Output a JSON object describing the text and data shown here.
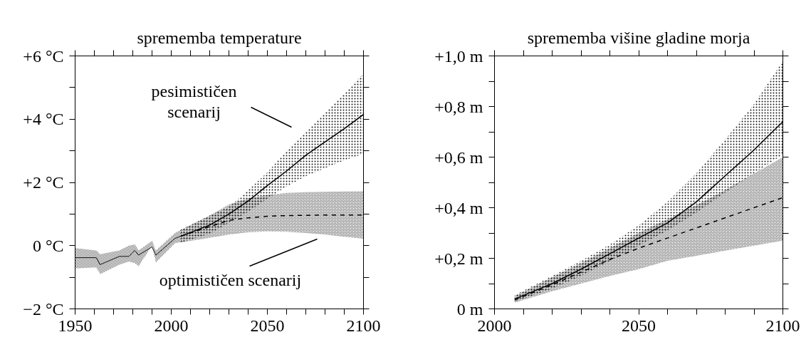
{
  "chart_data": [
    {
      "type": "line",
      "title": "sprememba temperature",
      "xlim": [
        1950,
        2100
      ],
      "ylim": [
        -2,
        6
      ],
      "xticks": [
        1950,
        {
          "value": 1960,
          "label": null
        },
        {
          "value": 1970,
          "label": null
        },
        {
          "value": 1980,
          "label": null
        },
        {
          "value": 1990,
          "label": null
        },
        2000,
        {
          "value": 2010,
          "label": null
        },
        {
          "value": 2020,
          "label": null
        },
        {
          "value": 2030,
          "label": null
        },
        {
          "value": 2040,
          "label": null
        },
        2050,
        {
          "value": 2060,
          "label": null
        },
        {
          "value": 2070,
          "label": null
        },
        {
          "value": 2080,
          "label": null
        },
        {
          "value": 2090,
          "label": null
        },
        2100
      ],
      "yticks": [
        {
          "value": -2,
          "label": "−2 °C"
        },
        {
          "value": -1,
          "label": null
        },
        {
          "value": 0,
          "label": "0 °C"
        },
        {
          "value": 1,
          "label": null
        },
        {
          "value": 2,
          "label": "+2 °C"
        },
        {
          "value": 3,
          "label": null
        },
        {
          "value": 4,
          "label": "+4 °C"
        },
        {
          "value": 5,
          "label": null
        },
        {
          "value": 6,
          "label": "+6 °C"
        }
      ],
      "grid": false,
      "marker": "none",
      "series": [
        {
          "color": "#000000",
          "line_style": "solid",
          "x": [
            1950,
            1961,
            1963,
            1973,
            1978,
            1981,
            1983,
            1990,
            1992,
            2002,
            2005
          ],
          "values": [
            -0.38,
            -0.38,
            -0.6,
            -0.34,
            -0.34,
            -0.15,
            -0.3,
            -0.04,
            -0.3,
            0.23,
            0.3
          ],
          "lower": [
            -0.72,
            -0.69,
            -0.9,
            -0.6,
            -0.5,
            -0.55,
            -0.65,
            0.0,
            -0.53,
            0.08,
            0.11
          ],
          "upper": [
            -0.08,
            -0.15,
            -0.27,
            -0.15,
            0.0,
            0.04,
            -0.15,
            0.15,
            -0.15,
            0.4,
            0.5
          ]
        },
        {
          "color": "#000000",
          "line_style": "solid",
          "x": [
            2005,
            2020,
            2030,
            2040,
            2050,
            2060,
            2070,
            2080,
            2090,
            2100
          ],
          "values": [
            0.3,
            0.65,
            1.0,
            1.41,
            1.9,
            2.36,
            2.86,
            3.28,
            3.7,
            4.15
          ],
          "lower": [
            0.1,
            0.38,
            0.72,
            1.07,
            1.49,
            1.87,
            2.2,
            2.45,
            2.7,
            2.9
          ],
          "upper": [
            0.5,
            0.95,
            1.22,
            1.75,
            2.32,
            3.0,
            3.6,
            4.2,
            4.8,
            5.45
          ]
        },
        {
          "color": "#000000",
          "line_style": "dashed",
          "x": [
            2005,
            2020,
            2030,
            2040,
            2050,
            2060,
            2070,
            2080,
            2090,
            2100
          ],
          "values": [
            0.3,
            0.6,
            0.8,
            0.88,
            0.93,
            0.95,
            0.96,
            0.97,
            0.97,
            0.97
          ],
          "lower": [
            0.1,
            0.25,
            0.35,
            0.42,
            0.45,
            0.44,
            0.4,
            0.35,
            0.28,
            0.22
          ],
          "upper": [
            0.5,
            0.95,
            1.3,
            1.5,
            1.6,
            1.67,
            1.69,
            1.7,
            1.71,
            1.72
          ]
        }
      ],
      "annotations": [
        "pesimističen\nscenarij",
        "optimističen scenarij"
      ]
    },
    {
      "type": "line",
      "title": "sprememba višine gladine morja",
      "xlim": [
        2000,
        2100
      ],
      "ylim": [
        0,
        1
      ],
      "xticks": [
        2000,
        {
          "value": 2010,
          "label": null
        },
        {
          "value": 2020,
          "label": null
        },
        {
          "value": 2030,
          "label": null
        },
        {
          "value": 2040,
          "label": null
        },
        2050,
        {
          "value": 2060,
          "label": null
        },
        {
          "value": 2070,
          "label": null
        },
        {
          "value": 2080,
          "label": null
        },
        {
          "value": 2090,
          "label": null
        },
        2100
      ],
      "yticks": [
        {
          "value": 0,
          "label": "0 m"
        },
        {
          "value": 0.1,
          "label": null
        },
        {
          "value": 0.2,
          "label": "+0,2 m"
        },
        {
          "value": 0.3,
          "label": null
        },
        {
          "value": 0.4,
          "label": "+0,4 m"
        },
        {
          "value": 0.5,
          "label": null
        },
        {
          "value": 0.6,
          "label": "+0,6 m"
        },
        {
          "value": 0.7,
          "label": null
        },
        {
          "value": 0.8,
          "label": "+0,8 m"
        },
        {
          "value": 0.9,
          "label": null
        },
        {
          "value": 1.0,
          "label": "+1,0 m"
        }
      ],
      "grid": false,
      "marker": "none",
      "series": [
        {
          "color": "#000000",
          "line_style": "solid",
          "x": [
            2007,
            2020,
            2030,
            2040,
            2050,
            2060,
            2070,
            2080,
            2090,
            2100
          ],
          "values": [
            0.039,
            0.1,
            0.157,
            0.218,
            0.28,
            0.34,
            0.423,
            0.526,
            0.628,
            0.74
          ],
          "lower": [
            0.029,
            0.08,
            0.13,
            0.19,
            0.25,
            0.31,
            0.38,
            0.46,
            0.536,
            0.61
          ],
          "upper": [
            0.054,
            0.13,
            0.19,
            0.254,
            0.33,
            0.423,
            0.536,
            0.67,
            0.81,
            0.98
          ]
        },
        {
          "color": "#000000",
          "line_style": "dashed",
          "x": [
            2007,
            2020,
            2030,
            2040,
            2050,
            2060,
            2070,
            2080,
            2090,
            2100
          ],
          "values": [
            0.035,
            0.095,
            0.145,
            0.195,
            0.24,
            0.28,
            0.32,
            0.36,
            0.4,
            0.44
          ],
          "lower": [
            0.025,
            0.07,
            0.1,
            0.13,
            0.157,
            0.19,
            0.21,
            0.23,
            0.25,
            0.27
          ],
          "upper": [
            0.05,
            0.125,
            0.18,
            0.24,
            0.3,
            0.355,
            0.41,
            0.47,
            0.535,
            0.6
          ]
        }
      ]
    }
  ]
}
